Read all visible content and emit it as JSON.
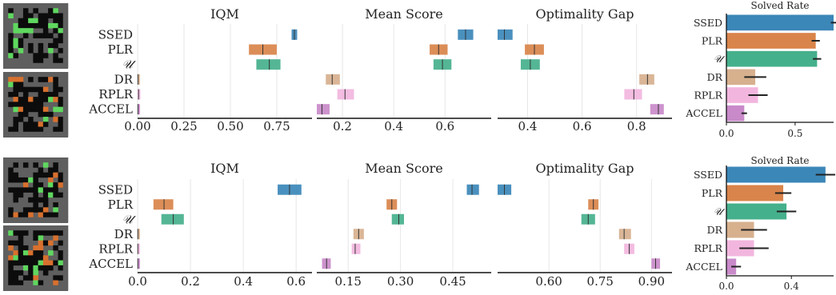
{
  "colors": {
    "SSED": "#3b87b8",
    "PLR": "#d9844a",
    "U": "#45b08c",
    "DR": "#d7b08e",
    "RPLR": "#f2b6de",
    "ACCEL": "#c98ac9",
    "grid": "#e6e6e6",
    "axis": "#111111",
    "maze_bg": "#5f5f5f",
    "maze_wall": "#0c0c0c",
    "maze_green": "#5fd85f",
    "maze_brick": "#d8702e"
  },
  "methods": [
    "SSED",
    "PLR",
    "𝒰",
    "DR",
    "RPLR",
    "ACCEL"
  ],
  "method_keys": [
    "SSED",
    "PLR",
    "U",
    "DR",
    "RPLR",
    "ACCEL"
  ],
  "panel_titles": [
    "IQM",
    "Mean Score",
    "Optimality Gap"
  ],
  "solved_title": "Solved Rate",
  "chart_data": [
    {
      "type": "interval",
      "row": 0,
      "title": "IQM",
      "xlim": [
        0.0,
        0.94
      ],
      "ticks": [
        0.0,
        0.25,
        0.5,
        0.75
      ],
      "tick_labels": [
        "0.00",
        "0.25",
        "0.50",
        "0.75"
      ],
      "series": [
        {
          "method": "SSED",
          "low": 0.83,
          "high": 0.86,
          "point": 0.845
        },
        {
          "method": "PLR",
          "low": 0.6,
          "high": 0.75,
          "point": 0.675
        },
        {
          "method": "U",
          "low": 0.64,
          "high": 0.77,
          "point": 0.71
        },
        {
          "method": "DR",
          "low": 0.0,
          "high": 0.005,
          "point": 0.002
        },
        {
          "method": "RPLR",
          "low": 0.0,
          "high": 0.015,
          "point": 0.005
        },
        {
          "method": "ACCEL",
          "low": 0.0,
          "high": 0.005,
          "point": 0.002
        }
      ]
    },
    {
      "type": "interval",
      "row": 0,
      "title": "Mean Score",
      "xlim": [
        0.1,
        0.78
      ],
      "ticks": [
        0.2,
        0.4,
        0.6
      ],
      "tick_labels": [
        "0.2",
        "0.4",
        "0.6"
      ],
      "series": [
        {
          "method": "SSED",
          "low": 0.65,
          "high": 0.71,
          "point": 0.68
        },
        {
          "method": "PLR",
          "low": 0.54,
          "high": 0.61,
          "point": 0.575
        },
        {
          "method": "U",
          "low": 0.555,
          "high": 0.625,
          "point": 0.59
        },
        {
          "method": "DR",
          "low": 0.135,
          "high": 0.19,
          "point": 0.16
        },
        {
          "method": "RPLR",
          "low": 0.18,
          "high": 0.245,
          "point": 0.21
        },
        {
          "method": "ACCEL",
          "low": 0.1,
          "high": 0.15,
          "point": 0.12
        }
      ]
    },
    {
      "type": "interval",
      "row": 0,
      "title": "Optimality Gap",
      "xlim": [
        0.29,
        0.93
      ],
      "ticks": [
        0.4,
        0.6,
        0.8
      ],
      "tick_labels": [
        "0.4",
        "0.6",
        "0.8"
      ],
      "series": [
        {
          "method": "SSED",
          "low": 0.29,
          "high": 0.345,
          "point": 0.315
        },
        {
          "method": "PLR",
          "low": 0.39,
          "high": 0.46,
          "point": 0.425
        },
        {
          "method": "U",
          "low": 0.375,
          "high": 0.445,
          "point": 0.41
        },
        {
          "method": "DR",
          "low": 0.81,
          "high": 0.865,
          "point": 0.84
        },
        {
          "method": "RPLR",
          "low": 0.755,
          "high": 0.82,
          "point": 0.79
        },
        {
          "method": "ACCEL",
          "low": 0.85,
          "high": 0.9,
          "point": 0.88
        }
      ]
    },
    {
      "type": "bar",
      "row": 0,
      "title": "Solved Rate",
      "orientation": "horizontal",
      "xlim": [
        0.0,
        0.78
      ],
      "ticks": [
        0.0,
        0.5
      ],
      "tick_labels": [
        "0.0",
        "0.5"
      ],
      "categories": [
        "SSED",
        "PLR",
        "U",
        "DR",
        "RPLR",
        "ACCEL"
      ],
      "values": [
        0.78,
        0.65,
        0.66,
        0.21,
        0.23,
        0.13
      ],
      "err": [
        0.02,
        0.03,
        0.03,
        0.08,
        0.07,
        0.02
      ]
    },
    {
      "type": "interval",
      "row": 1,
      "title": "IQM",
      "xlim": [
        0.0,
        0.66
      ],
      "ticks": [
        0.0,
        0.2,
        0.4,
        0.6
      ],
      "tick_labels": [
        "0.0",
        "0.2",
        "0.4",
        "0.6"
      ],
      "series": [
        {
          "method": "SSED",
          "low": 0.53,
          "high": 0.62,
          "point": 0.575
        },
        {
          "method": "PLR",
          "low": 0.06,
          "high": 0.135,
          "point": 0.1
        },
        {
          "method": "U",
          "low": 0.09,
          "high": 0.175,
          "point": 0.135
        },
        {
          "method": "DR",
          "low": 0.0,
          "high": 0.003,
          "point": 0.001
        },
        {
          "method": "RPLR",
          "low": 0.0,
          "high": 0.003,
          "point": 0.001
        },
        {
          "method": "ACCEL",
          "low": 0.0,
          "high": 0.003,
          "point": 0.001
        }
      ]
    },
    {
      "type": "interval",
      "row": 1,
      "title": "Mean Score",
      "xlim": [
        0.06,
        0.56
      ],
      "ticks": [
        0.15,
        0.3,
        0.45
      ],
      "tick_labels": [
        "0.15",
        "0.30",
        "0.45"
      ],
      "series": [
        {
          "method": "SSED",
          "low": 0.49,
          "high": 0.525,
          "point": 0.505
        },
        {
          "method": "PLR",
          "low": 0.26,
          "high": 0.29,
          "point": 0.275
        },
        {
          "method": "U",
          "low": 0.275,
          "high": 0.31,
          "point": 0.295
        },
        {
          "method": "DR",
          "low": 0.165,
          "high": 0.195,
          "point": 0.18
        },
        {
          "method": "RPLR",
          "low": 0.16,
          "high": 0.185,
          "point": 0.17
        },
        {
          "method": "ACCEL",
          "low": 0.075,
          "high": 0.1,
          "point": 0.088
        }
      ]
    },
    {
      "type": "interval",
      "row": 1,
      "title": "Optimality Gap",
      "xlim": [
        0.45,
        0.96
      ],
      "ticks": [
        0.6,
        0.75,
        0.9
      ],
      "tick_labels": [
        "0.60",
        "0.75",
        "0.90"
      ],
      "series": [
        {
          "method": "SSED",
          "low": 0.45,
          "high": 0.49,
          "point": 0.47
        },
        {
          "method": "PLR",
          "low": 0.715,
          "high": 0.745,
          "point": 0.73
        },
        {
          "method": "U",
          "low": 0.695,
          "high": 0.735,
          "point": 0.715
        },
        {
          "method": "DR",
          "low": 0.805,
          "high": 0.84,
          "point": 0.82
        },
        {
          "method": "RPLR",
          "low": 0.82,
          "high": 0.85,
          "point": 0.835
        },
        {
          "method": "ACCEL",
          "low": 0.9,
          "high": 0.925,
          "point": 0.912
        }
      ]
    },
    {
      "type": "bar",
      "row": 1,
      "title": "Solved Rate",
      "orientation": "horizontal",
      "xlim": [
        0.0,
        0.66
      ],
      "ticks": [
        0.0,
        0.4
      ],
      "tick_labels": [
        "0.0",
        "0.4"
      ],
      "categories": [
        "SSED",
        "PLR",
        "U",
        "DR",
        "RPLR",
        "ACCEL"
      ],
      "values": [
        0.61,
        0.35,
        0.37,
        0.17,
        0.17,
        0.06
      ],
      "err": [
        0.06,
        0.05,
        0.06,
        0.08,
        0.09,
        0.03
      ]
    }
  ]
}
